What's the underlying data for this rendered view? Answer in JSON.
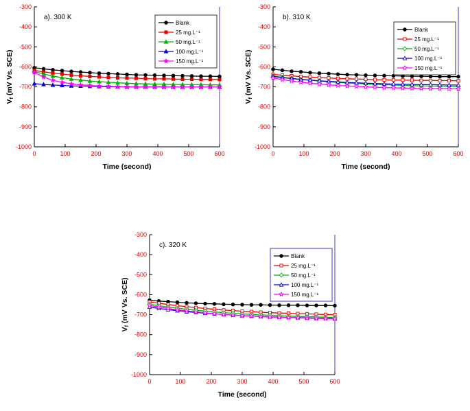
{
  "figure": {
    "background": "#ffffff",
    "panels": [
      "a",
      "b",
      "c"
    ]
  },
  "chart_data": [
    {
      "id": "a",
      "type": "line",
      "panel_label": "a). 300 K",
      "xlabel": "Time (second)",
      "ylabel_pre": "V",
      "ylabel_sub": "f",
      "ylabel_post": " (mV Vs. SCE)",
      "xlim": [
        0,
        600
      ],
      "ylim": [
        -1000,
        -300
      ],
      "xticks": [
        0,
        100,
        200,
        300,
        400,
        500,
        600
      ],
      "yticks": [
        -300,
        -400,
        -500,
        -600,
        -700,
        -800,
        -900,
        -1000
      ],
      "tick_label_color": "#e00000",
      "axis_color": "#000000",
      "right_spine_color": "#3a3ad0",
      "legend_border_color": "#333333",
      "legend_pos": {
        "x": 222,
        "y": 20
      },
      "x": [
        0,
        30,
        60,
        90,
        120,
        150,
        180,
        210,
        240,
        270,
        300,
        330,
        360,
        390,
        420,
        450,
        480,
        510,
        540,
        570,
        600
      ],
      "series": [
        {
          "name": "Blank",
          "color": "#000000",
          "marker": "circle",
          "open": false,
          "values": [
            -605,
            -610,
            -615,
            -619,
            -623,
            -626,
            -629,
            -632,
            -634,
            -636,
            -638,
            -640,
            -641,
            -642,
            -643,
            -644,
            -645,
            -646,
            -647,
            -647,
            -648
          ]
        },
        {
          "name": "25 mg.L⁻¹",
          "color": "#e60000",
          "marker": "square",
          "open": false,
          "values": [
            -618,
            -625,
            -631,
            -636,
            -641,
            -645,
            -648,
            -650,
            -653,
            -655,
            -656,
            -657,
            -659,
            -660,
            -660,
            -661,
            -662,
            -662,
            -663,
            -663,
            -663
          ]
        },
        {
          "name": "50 mg.L⁻¹",
          "color": "#00b200",
          "marker": "triangle",
          "open": false,
          "values": [
            -624,
            -636,
            -646,
            -654,
            -661,
            -666,
            -671,
            -674,
            -677,
            -680,
            -682,
            -684,
            -685,
            -686,
            -687,
            -688,
            -688,
            -689,
            -689,
            -690,
            -690
          ]
        },
        {
          "name": "100 mg.L⁻¹",
          "color": "#0000cd",
          "marker": "triangle",
          "open": false,
          "values": [
            -684,
            -688,
            -691,
            -693,
            -695,
            -696,
            -697,
            -698,
            -699,
            -699,
            -700,
            -700,
            -700,
            -700,
            -700,
            -701,
            -701,
            -701,
            -701,
            -701,
            -701
          ]
        },
        {
          "name": "150 mg.L⁻¹",
          "color": "#ff00ff",
          "marker": "star",
          "open": false,
          "values": [
            -628,
            -651,
            -667,
            -677,
            -685,
            -690,
            -693,
            -696,
            -697,
            -699,
            -699,
            -700,
            -700,
            -701,
            -701,
            -701,
            -701,
            -701,
            -701,
            -701,
            -701
          ]
        }
      ]
    },
    {
      "id": "b",
      "type": "line",
      "panel_label": "b). 310 K",
      "xlabel": "Time (second)",
      "ylabel_pre": "V",
      "ylabel_sub": "f",
      "ylabel_post": " (mV Vs. SCE)",
      "xlim": [
        0,
        600
      ],
      "ylim": [
        -1000,
        -300
      ],
      "xticks": [
        0,
        100,
        200,
        300,
        400,
        500,
        600
      ],
      "yticks": [
        -300,
        -400,
        -500,
        -600,
        -700,
        -800,
        -900,
        -1000
      ],
      "tick_label_color": "#e00000",
      "axis_color": "#000000",
      "right_spine_color": "#3a3ad0",
      "legend_border_color": "#333333",
      "legend_pos": {
        "x": 222,
        "y": 30
      },
      "x": [
        0,
        30,
        60,
        90,
        120,
        150,
        180,
        210,
        240,
        270,
        300,
        330,
        360,
        390,
        420,
        450,
        480,
        510,
        540,
        570,
        600
      ],
      "series": [
        {
          "name": "Blank",
          "color": "#000000",
          "marker": "circle",
          "open": false,
          "values": [
            -612,
            -617,
            -622,
            -625,
            -629,
            -632,
            -634,
            -637,
            -639,
            -640,
            -642,
            -643,
            -644,
            -645,
            -646,
            -647,
            -647,
            -648,
            -649,
            -649,
            -649
          ]
        },
        {
          "name": "25 mg.L⁻¹",
          "color": "#e60000",
          "marker": "square",
          "open": true,
          "values": [
            -638,
            -642,
            -645,
            -649,
            -651,
            -654,
            -656,
            -658,
            -660,
            -661,
            -662,
            -664,
            -665,
            -666,
            -666,
            -667,
            -668,
            -668,
            -669,
            -669,
            -670
          ]
        },
        {
          "name": "50 mg.L⁻¹",
          "color": "#00b200",
          "marker": "diamond",
          "open": true,
          "values": [
            -646,
            -652,
            -658,
            -663,
            -667,
            -671,
            -674,
            -678,
            -681,
            -683,
            -685,
            -688,
            -689,
            -691,
            -693,
            -694,
            -695,
            -696,
            -697,
            -698,
            -699
          ]
        },
        {
          "name": "100 mg.L⁻¹",
          "color": "#0000cd",
          "marker": "triangle",
          "open": true,
          "values": [
            -648,
            -654,
            -658,
            -663,
            -666,
            -670,
            -673,
            -675,
            -678,
            -680,
            -682,
            -683,
            -685,
            -686,
            -687,
            -688,
            -689,
            -689,
            -690,
            -691,
            -691
          ]
        },
        {
          "name": "150 mg.L⁻¹",
          "color": "#ff00ff",
          "marker": "star",
          "open": true,
          "values": [
            -656,
            -664,
            -671,
            -677,
            -682,
            -686,
            -690,
            -693,
            -696,
            -698,
            -700,
            -702,
            -704,
            -705,
            -706,
            -707,
            -708,
            -709,
            -709,
            -710,
            -710
          ]
        }
      ]
    },
    {
      "id": "c",
      "type": "line",
      "panel_label": "c). 320 K",
      "xlabel": "Time (second)",
      "ylabel_pre": "V",
      "ylabel_sub": "f",
      "ylabel_post": " (mV Vs. SCE)",
      "xlim": [
        0,
        600
      ],
      "ylim": [
        -1000,
        -300
      ],
      "xticks": [
        0,
        100,
        200,
        300,
        400,
        500,
        600
      ],
      "yticks": [
        -300,
        -400,
        -500,
        -600,
        -700,
        -800,
        -900,
        -1000
      ],
      "tick_label_color": "#e00000",
      "axis_color": "#000000",
      "right_spine_color": "#3a3ad0",
      "legend_border_color": "#3a3ad0",
      "legend_pos": {
        "x": 222,
        "y": 28
      },
      "x": [
        0,
        30,
        60,
        90,
        120,
        150,
        180,
        210,
        240,
        270,
        300,
        330,
        360,
        390,
        420,
        450,
        480,
        510,
        540,
        570,
        600
      ],
      "series": [
        {
          "name": "Blank",
          "color": "#000000",
          "marker": "circle",
          "open": false,
          "values": [
            -628,
            -632,
            -635,
            -638,
            -641,
            -643,
            -645,
            -646,
            -648,
            -649,
            -650,
            -651,
            -651,
            -652,
            -653,
            -653,
            -653,
            -654,
            -654,
            -654,
            -655
          ]
        },
        {
          "name": "25 mg.L⁻¹",
          "color": "#e60000",
          "marker": "square",
          "open": true,
          "values": [
            -636,
            -643,
            -649,
            -655,
            -660,
            -665,
            -669,
            -673,
            -677,
            -680,
            -683,
            -685,
            -688,
            -690,
            -692,
            -693,
            -695,
            -696,
            -698,
            -699,
            -700
          ]
        },
        {
          "name": "50 mg.L⁻¹",
          "color": "#00b200",
          "marker": "diamond",
          "open": true,
          "values": [
            -648,
            -655,
            -662,
            -668,
            -673,
            -678,
            -682,
            -686,
            -690,
            -693,
            -696,
            -699,
            -701,
            -703,
            -705,
            -707,
            -709,
            -710,
            -711,
            -713,
            -714
          ]
        },
        {
          "name": "100 mg.L⁻¹",
          "color": "#0000cd",
          "marker": "triangle",
          "open": true,
          "values": [
            -662,
            -669,
            -675,
            -680,
            -685,
            -689,
            -693,
            -696,
            -699,
            -702,
            -705,
            -707,
            -709,
            -711,
            -712,
            -714,
            -715,
            -716,
            -718,
            -718,
            -719
          ]
        },
        {
          "name": "150 mg.L⁻¹",
          "color": "#ff00ff",
          "marker": "star",
          "open": true,
          "values": [
            -654,
            -662,
            -669,
            -676,
            -681,
            -686,
            -691,
            -695,
            -699,
            -702,
            -705,
            -707,
            -710,
            -712,
            -713,
            -715,
            -716,
            -718,
            -719,
            -720,
            -721
          ]
        }
      ]
    }
  ]
}
